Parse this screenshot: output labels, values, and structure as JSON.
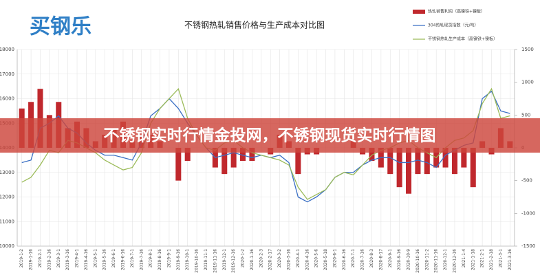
{
  "logo": "买钢乐",
  "banner": "不锈钢实时行情金投网，不锈钢现货实时行情图",
  "chart_data": {
    "type": "bar",
    "title": "不锈钢热轧销售价格与生产成本对比图",
    "categories": [
      "2019-1-2",
      "2019-1-16",
      "2019-2-1",
      "2019-2-16",
      "2019-3-1",
      "2019-3-16",
      "2019-4-1",
      "2019-4-16",
      "2019-5-1",
      "2019-5-16",
      "2019-6-1",
      "2019-6-16",
      "2019-7-1",
      "2019-7-16",
      "2019-8-1",
      "2019-8-16",
      "2019-9-1",
      "2019-9-16",
      "2019-10-1",
      "2019-10-16",
      "2019-11-1",
      "2019-11-16",
      "2019-12-1",
      "2019-12-16",
      "2020-1-2",
      "2020-1-16",
      "2020-2-3",
      "2020-2-17",
      "2020-3-2",
      "2020-3-16",
      "2020-4-1",
      "2020-4-16",
      "2020-5-6",
      "2020-5-18",
      "2020-6-1",
      "2020-6-16",
      "2020-7-1",
      "2020-7-16",
      "2020-8-3",
      "2020-8-17",
      "2020-9-1",
      "2020-9-16",
      "2020-10-9",
      "2020-10-16",
      "2020-11-2",
      "2020-11-16",
      "2020-12-1",
      "2020-12-16",
      "2021-1-4",
      "2021-1-18",
      "2021-2-1",
      "2021-2-18",
      "2021-3-1",
      "2021-3-16"
    ],
    "series": [
      {
        "name": "热轧销售利润（高镍铁+镍板）",
        "type": "bar",
        "axis": "y2",
        "color": "#c0282d",
        "values": [
          600,
          700,
          900,
          500,
          700,
          300,
          400,
          300,
          100,
          200,
          300,
          400,
          100,
          200,
          200,
          100,
          0,
          -500,
          -200,
          0,
          0,
          -300,
          -400,
          -300,
          -200,
          -200,
          0,
          -100,
          200,
          100,
          -400,
          -100,
          -100,
          0,
          0,
          0,
          100,
          -100,
          -200,
          -300,
          -400,
          -600,
          -700,
          -400,
          -400,
          -300,
          -300,
          -400,
          -300,
          -600,
          100,
          -100,
          300,
          100
        ]
      },
      {
        "name": "304热轧现货指数（元/吨）",
        "type": "line",
        "color": "#3a6fc4",
        "values": [
          13400,
          13500,
          14800,
          15000,
          15300,
          14800,
          14600,
          14200,
          13900,
          13700,
          13700,
          13600,
          13500,
          14200,
          15300,
          15600,
          16000,
          15600,
          15000,
          14500,
          14000,
          13600,
          13700,
          13800,
          13700,
          13600,
          13700,
          13600,
          13700,
          13400,
          12000,
          11800,
          12000,
          12300,
          12800,
          13000,
          13000,
          13300,
          13500,
          13600,
          13600,
          13400,
          13400,
          13500,
          13400,
          13200,
          13700,
          13900,
          14100,
          14200,
          16000,
          16300,
          15500,
          15400
        ]
      },
      {
        "name": "不锈钢热轧生产成本（高镍铁+镍板）",
        "type": "line",
        "color": "#9bbb59",
        "values": [
          12600,
          12800,
          13300,
          13900,
          13800,
          14300,
          14200,
          14000,
          13800,
          13500,
          13300,
          13100,
          13200,
          13800,
          15000,
          15600,
          16000,
          16400,
          15200,
          14500,
          14000,
          13900,
          14200,
          14300,
          14000,
          13800,
          13700,
          13600,
          13500,
          13300,
          12400,
          11900,
          12100,
          12300,
          12800,
          13000,
          12900,
          13300,
          13700,
          13900,
          14000,
          14200,
          14300,
          14000,
          13800,
          13600,
          14000,
          14300,
          14400,
          14700,
          15800,
          16400,
          15200,
          15300
        ]
      }
    ],
    "ylim": [
      10000,
      18000
    ],
    "yticks": [
      10000,
      11000,
      12000,
      13000,
      14000,
      15000,
      16000,
      17000,
      18000
    ],
    "y2lim": [
      -1500,
      1500
    ],
    "y2ticks": [
      -1500,
      -1000,
      -500,
      0,
      500,
      1000,
      1500
    ],
    "grid": true
  }
}
